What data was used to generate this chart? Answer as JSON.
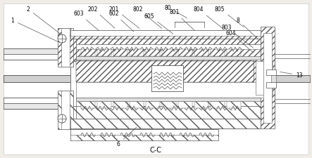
{
  "bg_color": "#f0ede8",
  "line_color": "#555555",
  "title": "C-C",
  "annotations": [
    [
      "2",
      40,
      212,
      88,
      175
    ],
    [
      "1",
      18,
      196,
      88,
      163
    ],
    [
      "202",
      132,
      213,
      165,
      183
    ],
    [
      "201",
      162,
      213,
      200,
      183
    ],
    [
      "603",
      112,
      206,
      142,
      180
    ],
    [
      "602",
      162,
      206,
      192,
      178
    ],
    [
      "802",
      196,
      212,
      232,
      183
    ],
    [
      "80",
      238,
      215,
      268,
      198
    ],
    [
      "605",
      212,
      203,
      248,
      175
    ],
    [
      "801",
      248,
      208,
      278,
      180
    ],
    [
      "804",
      282,
      212,
      318,
      183
    ],
    [
      "805",
      312,
      213,
      348,
      185
    ],
    [
      "8",
      338,
      196,
      368,
      168
    ],
    [
      "803",
      322,
      186,
      362,
      155
    ],
    [
      "604",
      328,
      178,
      362,
      148
    ],
    [
      "6",
      168,
      20,
      196,
      46
    ],
    [
      "13",
      425,
      118,
      395,
      123
    ]
  ]
}
